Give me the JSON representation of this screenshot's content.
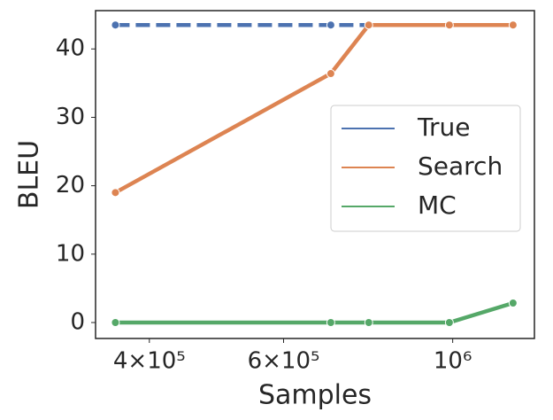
{
  "chart_data": {
    "type": "line",
    "x_label": "Samples",
    "y_label": "BLEU",
    "x": [
      361000,
      692000,
      776000,
      990000,
      1200000
    ],
    "series": [
      {
        "name": "True",
        "color": "#4c72b0",
        "linestyle": "dashed",
        "values": [
          43.5,
          43.5,
          43.5,
          43.5,
          43.5
        ]
      },
      {
        "name": "Search",
        "color": "#dd8452",
        "linestyle": "solid",
        "values": [
          19.0,
          36.4,
          43.5,
          43.5,
          43.5
        ]
      },
      {
        "name": "MC",
        "color": "#55a868",
        "linestyle": "solid",
        "values": [
          0,
          0,
          0,
          0,
          2.85
        ]
      }
    ],
    "xscale": "log",
    "xlim": [
      340000,
      1280000
    ],
    "xticks": [
      {
        "value": 400000,
        "label": "4×10⁵"
      },
      {
        "value": 600000,
        "label": "6×10⁵"
      },
      {
        "value": 1000000,
        "label": "10⁶"
      }
    ],
    "ylim": [
      -2.33,
      45.6
    ],
    "yticks": [
      0,
      10,
      20,
      30,
      40
    ],
    "legend": "right",
    "grid": false
  }
}
